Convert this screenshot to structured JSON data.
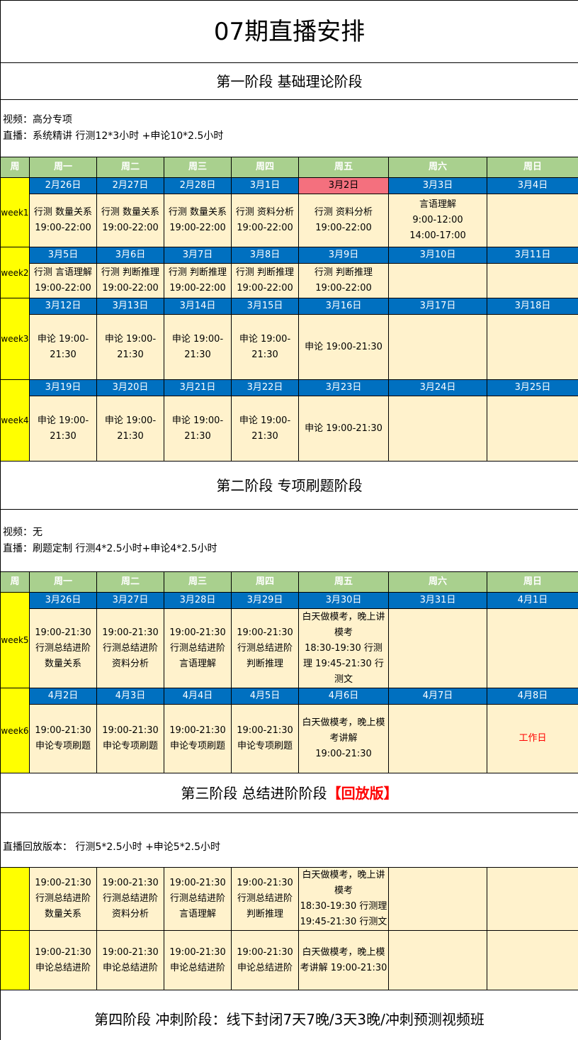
{
  "title": "07期直播安排",
  "weekdays": [
    "周",
    "周一",
    "周二",
    "周三",
    "周四",
    "周五",
    "周六",
    "周日"
  ],
  "stage1": {
    "title": "第一阶段  基础理论阶段",
    "info": [
      "视频：高分专项",
      "直播：系统精讲  行测12*3小时 +申论10*2.5小时"
    ],
    "weeks": [
      {
        "label": "week1",
        "dates": [
          "2月26日",
          "2月27日",
          "2月28日",
          "3月1日",
          "3月2日",
          "3月3日",
          "3月4日"
        ],
        "highlight_date_index": 4,
        "cells": [
          [
            "行测 数量关系",
            "19:00-22:00"
          ],
          [
            "行测 数量关系",
            "19:00-22:00"
          ],
          [
            "行测 数量关系",
            "19:00-22:00"
          ],
          [
            "行测 资料分析",
            "19:00-22:00"
          ],
          [
            "行测 资料分析",
            "19:00-22:00"
          ],
          [
            "言语理解",
            "9:00-12:00",
            "14:00-17:00"
          ],
          []
        ]
      },
      {
        "label": "week2",
        "dates": [
          "3月5日",
          "3月6日",
          "3月7日",
          "3月8日",
          "3月9日",
          "3月10日",
          "3月11日"
        ],
        "cells": [
          [
            "行测 言语理解",
            "19:00-22:00"
          ],
          [
            "行测 判断推理",
            "19:00-22:00"
          ],
          [
            "行测 判断推理",
            "19:00-22:00"
          ],
          [
            "行测 判断推理",
            "19:00-22:00"
          ],
          [
            "行测 判断推理",
            "19:00-22:00"
          ],
          [],
          []
        ]
      },
      {
        "label": "week3",
        "dates": [
          "3月12日",
          "3月13日",
          "3月14日",
          "3月15日",
          "3月16日",
          "3月17日",
          "3月18日"
        ],
        "cells": [
          [
            "申论 19:00-",
            "21:30"
          ],
          [
            "申论 19:00-",
            "21:30"
          ],
          [
            "申论 19:00-",
            "21:30"
          ],
          [
            "申论 19:00-",
            "21:30"
          ],
          [
            "申论 19:00-21:30"
          ],
          [],
          []
        ]
      },
      {
        "label": "week4",
        "dates": [
          "3月19日",
          "3月20日",
          "3月21日",
          "3月22日",
          "3月23日",
          "3月24日",
          "3月25日"
        ],
        "cells": [
          [
            "申论 19:00-",
            "21:30"
          ],
          [
            "申论 19:00-",
            "21:30"
          ],
          [
            "申论 19:00-",
            "21:30"
          ],
          [
            "申论 19:00-",
            "21:30"
          ],
          [
            "申论 19:00-21:30"
          ],
          [],
          []
        ]
      }
    ]
  },
  "stage2": {
    "title": "第二阶段  专项刷题阶段",
    "info": [
      "视频：无",
      "直播：刷题定制  行测4*2.5小时+申论4*2.5小时"
    ],
    "weeks": [
      {
        "label": "week5",
        "dates": [
          "3月26日",
          "3月27日",
          "3月28日",
          "3月29日",
          "3月30日",
          "3月31日",
          "4月1日"
        ],
        "cells": [
          [
            "19:00-21:30",
            "行测总结进阶",
            "数量关系"
          ],
          [
            "19:00-21:30",
            "行测总结进阶",
            "资料分析"
          ],
          [
            "19:00-21:30",
            "行测总结进阶",
            "言语理解"
          ],
          [
            "19:00-21:30",
            "行测总结进阶",
            "判断推理"
          ],
          [
            "白天做模考，晚上讲",
            "模考",
            "18:30-19:30  行测",
            "理  19:45-21:30  行",
            "测文"
          ],
          [],
          []
        ]
      },
      {
        "label": "week6",
        "dates": [
          "4月2日",
          "4月3日",
          "4月4日",
          "4月5日",
          "4月6日",
          "4月7日",
          "4月8日"
        ],
        "cells": [
          [
            "19:00-21:30",
            "申论专项刷题"
          ],
          [
            "19:00-21:30",
            "申论专项刷题"
          ],
          [
            "19:00-21:30",
            "申论专项刷题"
          ],
          [
            "19:00-21:30",
            "申论专项刷题"
          ],
          [
            "白天做模考，晚上模",
            "考讲解",
            "19:00-21:30"
          ],
          [],
          [
            "工作日"
          ]
        ],
        "red_cell_index": 6
      }
    ]
  },
  "stage3": {
    "title": "第三阶段  总结进阶阶段",
    "title_tag": "【回放版】",
    "info": [
      "直播回放版本：  行测5*2.5小时 +申论5*2.5小时"
    ],
    "rows": [
      {
        "cells": [
          [
            "19:00-21:30",
            "行测总结进阶",
            "数量关系"
          ],
          [
            "19:00-21:30",
            "行测总结进阶",
            "资料分析"
          ],
          [
            "19:00-21:30",
            "行测总结进阶",
            "言语理解"
          ],
          [
            "19:00-21:30",
            "行测总结进阶",
            "判断推理"
          ],
          [
            "白天做模考，晚上讲",
            "模考",
            "18:30-19:30 行测理",
            "19:45-21:30 行测文"
          ],
          [],
          []
        ]
      },
      {
        "cells": [
          [
            "19:00-21:30",
            "申论总结进阶"
          ],
          [
            "19:00-21:30",
            "申论总结进阶"
          ],
          [
            "19:00-21:30",
            "申论总结进阶"
          ],
          [
            "19:00-21:30",
            "申论总结进阶"
          ],
          [
            "白天做模考，晚上模",
            "考讲解 19:00-21:30"
          ],
          [],
          []
        ]
      }
    ]
  },
  "stage4": {
    "title": "第四阶段 冲刺阶段：线下封闭7天7晚/3天3晚/冲刺预测视频班"
  },
  "colors": {
    "header": "#a9d08e",
    "date": "#0070c0",
    "content": "#fff2cc",
    "week": "#ffff00",
    "highlight": "#f4707e",
    "alert": "#ff0000"
  }
}
